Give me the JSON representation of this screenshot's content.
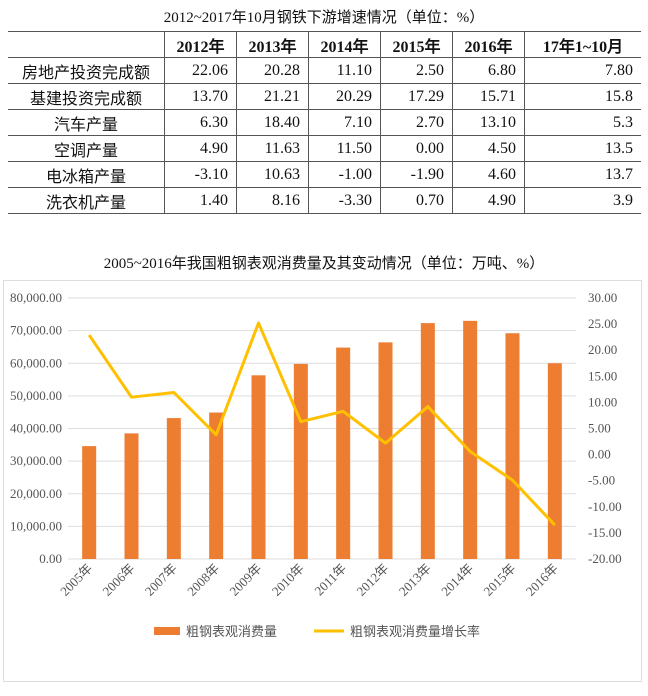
{
  "table": {
    "title": "2012~2017年10月钢铁下游增速情况（单位：%）",
    "headers": [
      "2012年",
      "2013年",
      "2014年",
      "2015年",
      "2016年",
      "17年1~10月"
    ],
    "rows": [
      {
        "label": "房地产投资完成额",
        "values": [
          "22.06",
          "20.28",
          "11.10",
          "2.50",
          "6.80",
          "7.80"
        ]
      },
      {
        "label": "基建投资完成额",
        "values": [
          "13.70",
          "21.21",
          "20.29",
          "17.29",
          "15.71",
          "15.8"
        ]
      },
      {
        "label": "汽车产量",
        "values": [
          "6.30",
          "18.40",
          "7.10",
          "2.70",
          "13.10",
          "5.3"
        ]
      },
      {
        "label": "空调产量",
        "values": [
          "4.90",
          "11.63",
          "11.50",
          "0.00",
          "4.50",
          "13.5"
        ]
      },
      {
        "label": "电冰箱产量",
        "values": [
          "-3.10",
          "10.63",
          "-1.00",
          "-1.90",
          "4.60",
          "13.7"
        ]
      },
      {
        "label": "洗衣机产量",
        "values": [
          "1.40",
          "8.16",
          "-3.30",
          "0.70",
          "4.90",
          "3.9"
        ]
      }
    ]
  },
  "chart_data": {
    "type": "bar",
    "title": "2005~2016年我国粗钢表观消费量及其变动情况（单位：万吨、%）",
    "categories": [
      "2005年",
      "2006年",
      "2007年",
      "2008年",
      "2009年",
      "2010年",
      "2011年",
      "2012年",
      "2013年",
      "2014年",
      "2015年",
      "2016年"
    ],
    "series": [
      {
        "name": "粗钢表观消费量",
        "type": "bar",
        "axis": "left",
        "color": "#ED7D31",
        "values": [
          34600,
          38500,
          43200,
          44900,
          56300,
          59800,
          64800,
          66400,
          72300,
          73000,
          69200,
          60000
        ]
      },
      {
        "name": "粗钢表观消费量增长率",
        "type": "line",
        "axis": "right",
        "color": "#FFC000",
        "values": [
          22.9,
          11.0,
          11.9,
          3.8,
          25.2,
          6.3,
          8.3,
          2.2,
          9.2,
          0.6,
          -4.9,
          -13.5
        ]
      }
    ],
    "left_ticks": [
      "0.00",
      "10,000.00",
      "20,000.00",
      "30,000.00",
      "40,000.00",
      "50,000.00",
      "60,000.00",
      "70,000.00",
      "80,000.00"
    ],
    "right_ticks": [
      "-20.00",
      "-15.00",
      "-10.00",
      "-5.00",
      "0.00",
      "5.00",
      "10.00",
      "15.00",
      "20.00",
      "25.00",
      "30.00"
    ],
    "ylim_left": [
      0,
      80000
    ],
    "ylim_right": [
      -20,
      30
    ],
    "grid": true,
    "legend": "bottom"
  }
}
